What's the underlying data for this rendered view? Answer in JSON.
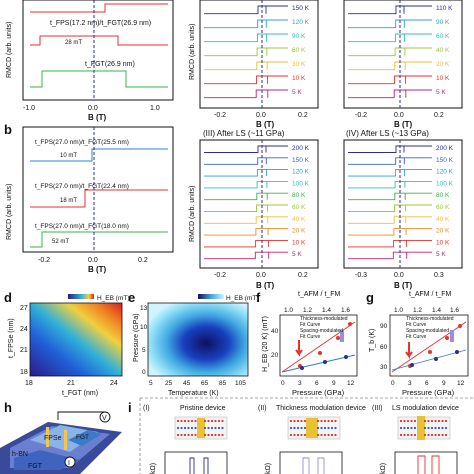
{
  "panels": {
    "a": {
      "letter": "",
      "ylabel": "RMCD (arb. units)",
      "xlabel": "B (T)",
      "x_ticks": [
        "-1.0",
        "0.0",
        "1.0"
      ],
      "traces": [
        {
          "label_html": "t_FPS(17.2 nm)/t_FGT(26.9 nm)",
          "field": "28 mT",
          "color": "#e8322b"
        },
        {
          "label_html": "t_FGT(26.9 nm)",
          "field": "",
          "color": "#38b449"
        }
      ]
    },
    "b": {
      "letter": "b",
      "ylabel": "RMCD (arb. units)",
      "xlabel": "B (T)",
      "x_ticks": [
        "-0.2",
        "0.0",
        "0.2"
      ],
      "traces": [
        {
          "label": "t_FPS(27.0 nm)/t_FGT(25.5 nm)",
          "field": "10 mT",
          "color": "#2f7fd0"
        },
        {
          "label": "t_FPS(27.0 nm)/t_FGT(22.4 nm)",
          "field": "18 mT",
          "color": "#e8322b"
        },
        {
          "label": "t_FPS(27.0 nm)/t_FGT(18.0 nm)",
          "field": "52 mT",
          "color": "#38b449"
        }
      ]
    },
    "c_top_left": {
      "temps": [
        "150 K",
        "120 K",
        "90 K",
        "60 K",
        "30 K",
        "10 K",
        "5 K"
      ],
      "ylabel": "RMCD (arb. units)",
      "xlabel": "B (T)",
      "x_ticks": [
        "-0.2",
        "0.0",
        "0.2"
      ]
    },
    "c_top_right": {
      "temps": [
        "110 K",
        "90 K",
        "60 K",
        "40 K",
        "20 K",
        "10 K",
        "5 K"
      ],
      "xlabel": "B (T)",
      "x_ticks": [
        "-0.2",
        "0.0",
        "0.2"
      ]
    },
    "c_bottom_left": {
      "title": "(III)   After LS (~11 GPa)",
      "temps": [
        "200 K",
        "150 K",
        "120 K",
        "100 K",
        "80 K",
        "60 K",
        "40 K",
        "20 K",
        "10 K",
        "5 K"
      ],
      "ylabel": "RMCD (arb. units)",
      "xlabel": "B (T)",
      "x_ticks": [
        "-0.2",
        "0.0",
        "0.2"
      ]
    },
    "c_bottom_right": {
      "title": "(IV)   After LS (~13 GPa)",
      "temps": [
        "200 K",
        "150 K",
        "120 K",
        "100 K",
        "80 K",
        "60 K",
        "40 K",
        "20 K",
        "10 K",
        "5 K"
      ],
      "xlabel": "B (T)",
      "x_ticks": [
        "-0.3",
        "0.0",
        "0.3"
      ]
    },
    "d": {
      "letter": "d",
      "cbar_label": "H_EB (mT)",
      "ylabel": "t_FPSe (nm)",
      "xlabel": "t_FGT (nm)",
      "y_ticks": [
        "27",
        "24",
        "21",
        "18"
      ],
      "x_ticks": [
        "18",
        "21",
        "24"
      ]
    },
    "e": {
      "letter": "e",
      "cbar_label": "H_EB (mT)",
      "ylabel": "Pressure (GPa)",
      "xlabel": "Temperature (K)",
      "y_ticks": [
        "13",
        "10",
        "5",
        "0"
      ],
      "x_ticks": [
        "5",
        "25",
        "45",
        "65",
        "85",
        "105"
      ]
    },
    "f": {
      "letter": "f",
      "top_axis": "t_AFM / t_FM",
      "top_ticks": [
        "1.0",
        "1.2",
        "1.4",
        "1.6"
      ],
      "ylabel": "H_EB (20 K) (mT)",
      "xlabel": "Pressure (GPa)",
      "x_ticks": [
        "0",
        "3",
        "6",
        "9",
        "12"
      ],
      "y_ticks": [
        "20",
        "40"
      ],
      "legend": [
        "Thickness-modulated",
        "Fit Curve",
        "Spacing-modulated",
        "Fit Curve"
      ]
    },
    "g": {
      "letter": "g",
      "top_axis": "t_AFM / t_FM",
      "top_ticks": [
        "1.0",
        "1.2",
        "1.4",
        "1.6"
      ],
      "ylabel": "T_b (K)",
      "xlabel": "Pressure (GPa)",
      "x_ticks": [
        "0",
        "3",
        "6",
        "9",
        "12"
      ],
      "y_ticks": [
        "30",
        "60",
        "90"
      ],
      "legend": [
        "Thickness-modulated",
        "Fit Curve",
        "Spacing-modulated",
        "Fit Curve"
      ]
    },
    "h": {
      "letter": "h",
      "layers": [
        "FPSe",
        "FGT",
        "h-BN",
        "FGT"
      ],
      "circuit": [
        "V",
        "I"
      ]
    },
    "i": {
      "letter": "i",
      "devices": [
        {
          "roman": "(I)",
          "name": "Pristine device"
        },
        {
          "roman": "(II)",
          "name": "Thickness modulation device"
        },
        {
          "roman": "(III)",
          "name": "LS modulation device"
        }
      ],
      "ylabel_fragment": "kΩ)"
    }
  },
  "colors": {
    "red": "#e8322b",
    "blue": "#2f7fd0",
    "green": "#38b449",
    "navy": "#2b2f8f"
  }
}
